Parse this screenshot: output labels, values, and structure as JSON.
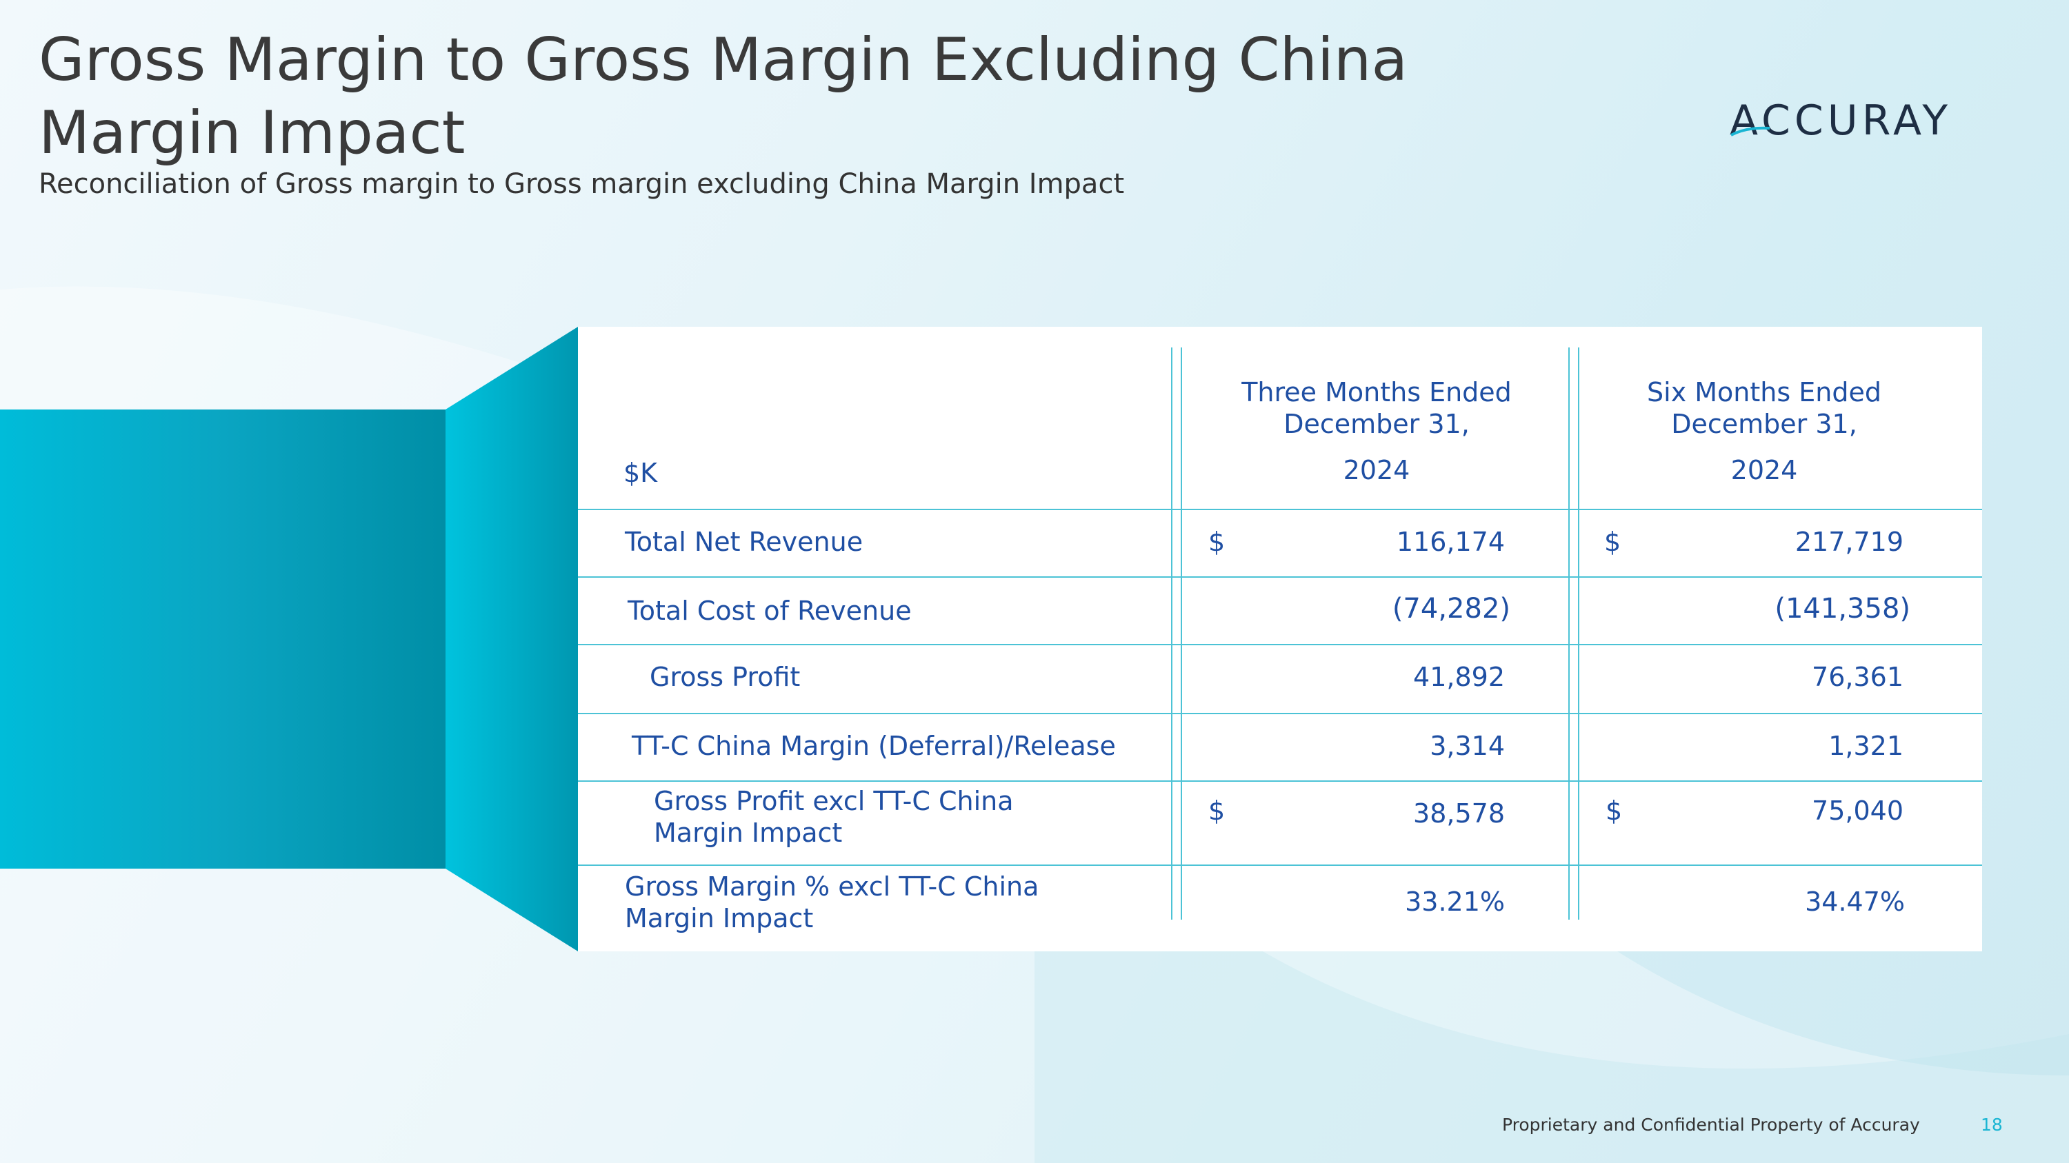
{
  "title": "Gross Margin to Gross Margin Excluding China Margin Impact",
  "subtitle": "Reconciliation of Gross margin to Gross margin excluding China Margin Impact",
  "logo": {
    "text": "ACCURAY"
  },
  "table": {
    "unit_label": "$K",
    "col1": {
      "header": "Three Months Ended December 31,",
      "year": "2024"
    },
    "col2": {
      "header": "Six Months Ended December 31,",
      "year": "2024"
    },
    "rows": [
      {
        "label": "Total Net Revenue",
        "c1_sym": "$",
        "c1": "116,174",
        "c2_sym": "$",
        "c2": "217,719"
      },
      {
        "label": "Total Cost of Revenue",
        "c1_sym": "",
        "c1": "(74,282)",
        "c2_sym": "",
        "c2": "(141,358)"
      },
      {
        "label": "Gross Profit",
        "c1_sym": "",
        "c1": "41,892",
        "c2_sym": "",
        "c2": "76,361"
      },
      {
        "label": "TT-C China Margin (Deferral)/Release",
        "c1_sym": "",
        "c1": "3,314",
        "c2_sym": "",
        "c2": "1,321"
      },
      {
        "label_line1": "Gross Profit excl TT-C China",
        "label_line2": "Margin Impact",
        "c1_sym": "$",
        "c1": "38,578",
        "c2_sym": "$",
        "c2": "75,040"
      },
      {
        "label_line1": "Gross Margin % excl TT-C China",
        "label_line2": "Margin Impact",
        "c1_sym": "",
        "c1": "33.21%",
        "c2_sym": "",
        "c2": "34.47%"
      }
    ]
  },
  "footer": {
    "text": "Proprietary and Confidential Property of Accuray",
    "page": "18"
  },
  "colors": {
    "accent": "#19b5d3",
    "table_text": "#1f4fa3",
    "rule": "#4cc3d6"
  }
}
